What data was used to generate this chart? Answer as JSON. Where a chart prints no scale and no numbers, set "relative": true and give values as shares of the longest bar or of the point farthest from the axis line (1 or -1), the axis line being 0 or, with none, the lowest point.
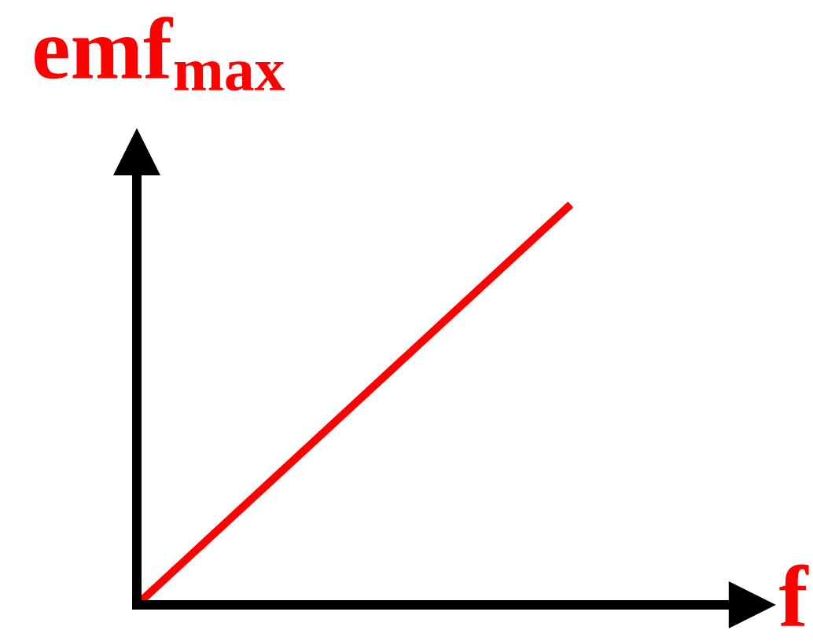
{
  "chart_data": {
    "type": "line",
    "xlabel": "f",
    "ylabel": "emf$_{max}$",
    "categories": [
      null,
      null
    ],
    "series": [
      {
        "color": "#ff0000",
        "values": [
          0,
          1
        ]
      }
    ],
    "relative": true,
    "grid": false,
    "marker": "none",
    "line_style": "solid"
  }
}
